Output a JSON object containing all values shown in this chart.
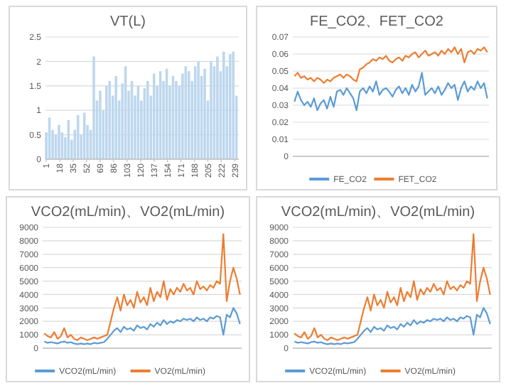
{
  "chart_data": [
    {
      "type": "bar",
      "title": "VT(L)",
      "x": [
        1,
        5,
        9,
        13,
        17,
        21,
        25,
        29,
        33,
        37,
        41,
        45,
        49,
        53,
        57,
        61,
        65,
        69,
        73,
        77,
        81,
        85,
        89,
        93,
        97,
        101,
        105,
        109,
        113,
        117,
        121,
        125,
        129,
        133,
        137,
        141,
        145,
        149,
        153,
        157,
        161,
        165,
        169,
        173,
        177,
        181,
        185,
        189,
        193,
        197,
        201,
        205,
        209,
        213,
        217,
        221,
        225,
        229,
        233,
        237,
        241
      ],
      "values": [
        0.55,
        0.85,
        0.6,
        0.5,
        0.7,
        0.55,
        0.45,
        0.8,
        0.4,
        0.6,
        0.9,
        0.5,
        0.95,
        0.7,
        0.6,
        2.1,
        1.2,
        1.4,
        1.0,
        1.5,
        1.6,
        1.3,
        1.7,
        1.2,
        1.55,
        1.9,
        1.4,
        1.6,
        1.3,
        1.5,
        1.2,
        1.45,
        1.6,
        1.3,
        1.75,
        1.5,
        1.8,
        1.6,
        1.85,
        1.5,
        1.7,
        1.6,
        1.5,
        1.75,
        1.9,
        1.8,
        1.6,
        1.9,
        2.0,
        1.7,
        1.85,
        1.2,
        2.0,
        1.9,
        2.1,
        1.8,
        2.2,
        1.9,
        2.15,
        2.2,
        1.3
      ],
      "color": "#bdd7ee",
      "xlim": [
        0,
        244
      ],
      "xticks": [
        1,
        18,
        35,
        52,
        69,
        86,
        103,
        120,
        137,
        154,
        171,
        188,
        205,
        222,
        239
      ],
      "ylim": [
        0,
        2.5
      ],
      "yticks": [
        0,
        0.5,
        1,
        1.5,
        2,
        2.5
      ],
      "grid": "y",
      "legend": false
    },
    {
      "type": "line",
      "title": "FE_CO2、FET_CO2",
      "categories": [
        null,
        null,
        null,
        null,
        null,
        null,
        null,
        null,
        null,
        null,
        null,
        null,
        null,
        null,
        null,
        null,
        null,
        null,
        null,
        null,
        null,
        null,
        null,
        null,
        null,
        null,
        null,
        null,
        null,
        null,
        null,
        null,
        null,
        null,
        null,
        null,
        null,
        null,
        null,
        null,
        null,
        null,
        null,
        null,
        null,
        null,
        null,
        null,
        null,
        null,
        null,
        null,
        null,
        null,
        null,
        null,
        null,
        null,
        null,
        null
      ],
      "series": [
        {
          "name": "FE_CO2",
          "color": "#5b9bd5",
          "values": [
            0.032,
            0.038,
            0.033,
            0.03,
            0.032,
            0.029,
            0.034,
            0.027,
            0.031,
            0.033,
            0.028,
            0.035,
            0.029,
            0.038,
            0.039,
            0.036,
            0.04,
            0.037,
            0.034,
            0.027,
            0.038,
            0.04,
            0.037,
            0.041,
            0.038,
            0.044,
            0.036,
            0.039,
            0.04,
            0.038,
            0.035,
            0.039,
            0.041,
            0.037,
            0.04,
            0.036,
            0.042,
            0.038,
            0.041,
            0.049,
            0.036,
            0.038,
            0.04,
            0.037,
            0.041,
            0.036,
            0.039,
            0.043,
            0.04,
            0.042,
            0.033,
            0.04,
            0.044,
            0.038,
            0.041,
            0.039,
            0.044,
            0.04,
            0.043,
            0.034
          ]
        },
        {
          "name": "FET_CO2",
          "color": "#ed7d31",
          "values": [
            0.047,
            0.049,
            0.046,
            0.047,
            0.045,
            0.046,
            0.044,
            0.046,
            0.045,
            0.043,
            0.045,
            0.044,
            0.046,
            0.047,
            0.048,
            0.046,
            0.048,
            0.047,
            0.045,
            0.044,
            0.051,
            0.052,
            0.054,
            0.055,
            0.057,
            0.056,
            0.058,
            0.057,
            0.059,
            0.056,
            0.055,
            0.057,
            0.058,
            0.056,
            0.059,
            0.058,
            0.06,
            0.061,
            0.058,
            0.06,
            0.062,
            0.059,
            0.06,
            0.061,
            0.059,
            0.062,
            0.06,
            0.063,
            0.061,
            0.064,
            0.06,
            0.063,
            0.055,
            0.061,
            0.062,
            0.06,
            0.063,
            0.062,
            0.064,
            0.061
          ]
        }
      ],
      "ylim": [
        0,
        0.07
      ],
      "yticks": [
        0,
        0.01,
        0.02,
        0.03,
        0.04,
        0.05,
        0.06,
        0.07
      ],
      "grid": "y",
      "legend": "bottom",
      "marker": "none",
      "tick_labels": "y"
    },
    {
      "type": "line",
      "title": "VCO2(mL/min)、VO2(mL/min)",
      "categories": [
        null,
        null,
        null,
        null,
        null,
        null,
        null,
        null,
        null,
        null,
        null,
        null,
        null,
        null,
        null,
        null,
        null,
        null,
        null,
        null,
        null,
        null,
        null,
        null,
        null,
        null,
        null,
        null,
        null,
        null,
        null,
        null,
        null,
        null,
        null,
        null,
        null,
        null,
        null,
        null,
        null,
        null,
        null,
        null,
        null,
        null,
        null,
        null,
        null,
        null,
        null,
        null,
        null,
        null,
        null,
        null,
        null,
        null,
        null,
        null
      ],
      "series": [
        {
          "name": "VCO2(mL/min)",
          "color": "#5b9bd5",
          "values": [
            500,
            400,
            450,
            400,
            350,
            450,
            500,
            400,
            450,
            350,
            300,
            350,
            300,
            350,
            300,
            400,
            350,
            400,
            450,
            700,
            1000,
            1300,
            1500,
            1200,
            1600,
            1400,
            1500,
            1300,
            1700,
            1500,
            1600,
            1400,
            1800,
            1600,
            1900,
            1700,
            2100,
            1800,
            2000,
            1900,
            2100,
            2000,
            2200,
            2100,
            2200,
            2000,
            2300,
            2100,
            2200,
            2000,
            2300,
            2200,
            2400,
            2300,
            1000,
            2500,
            2300,
            3000,
            2600,
            1800
          ]
        },
        {
          "name": "VO2(mL/min)",
          "color": "#ed7d31",
          "values": [
            1100,
            900,
            800,
            1200,
            700,
            900,
            1500,
            800,
            1000,
            700,
            600,
            800,
            700,
            600,
            700,
            800,
            700,
            800,
            900,
            1000,
            2000,
            3000,
            3800,
            2800,
            4000,
            3200,
            3600,
            3000,
            4200,
            3400,
            3800,
            3200,
            4500,
            3500,
            4200,
            3800,
            5000,
            3600,
            4400,
            4000,
            4500,
            4200,
            4800,
            4300,
            4500,
            4000,
            5000,
            4400,
            4600,
            4300,
            4700,
            4500,
            5000,
            4800,
            8500,
            3500,
            5000,
            6000,
            5200,
            4000
          ]
        }
      ],
      "ylim": [
        0,
        9000
      ],
      "yticks": [
        0,
        1000,
        2000,
        3000,
        4000,
        5000,
        6000,
        7000,
        8000,
        9000
      ],
      "grid": "y",
      "legend": "bottom",
      "marker": "none",
      "tick_labels": "y"
    },
    {
      "type": "line",
      "title": "VCO2(mL/min)、VO2(mL/min)",
      "categories": [
        null,
        null,
        null,
        null,
        null,
        null,
        null,
        null,
        null,
        null,
        null,
        null,
        null,
        null,
        null,
        null,
        null,
        null,
        null,
        null,
        null,
        null,
        null,
        null,
        null,
        null,
        null,
        null,
        null,
        null,
        null,
        null,
        null,
        null,
        null,
        null,
        null,
        null,
        null,
        null,
        null,
        null,
        null,
        null,
        null,
        null,
        null,
        null,
        null,
        null,
        null,
        null,
        null,
        null,
        null,
        null,
        null,
        null,
        null,
        null
      ],
      "series": [
        {
          "name": "VCO2(mL/min)",
          "color": "#5b9bd5",
          "values": [
            500,
            400,
            450,
            400,
            350,
            450,
            500,
            400,
            450,
            350,
            300,
            350,
            300,
            350,
            300,
            400,
            350,
            400,
            450,
            700,
            1000,
            1300,
            1500,
            1200,
            1600,
            1400,
            1500,
            1300,
            1700,
            1500,
            1600,
            1400,
            1800,
            1600,
            1900,
            1700,
            2100,
            1800,
            2000,
            1900,
            2100,
            2000,
            2200,
            2100,
            2200,
            2000,
            2300,
            2100,
            2200,
            2000,
            2300,
            2200,
            2400,
            2300,
            1000,
            2500,
            2300,
            3000,
            2600,
            1800
          ]
        },
        {
          "name": "VO2(mL/min)",
          "color": "#ed7d31",
          "values": [
            1100,
            900,
            800,
            1200,
            700,
            900,
            1500,
            800,
            1000,
            700,
            600,
            800,
            700,
            600,
            700,
            800,
            700,
            800,
            900,
            1000,
            2000,
            3000,
            3800,
            2800,
            4000,
            3200,
            3600,
            3000,
            4200,
            3400,
            3800,
            3200,
            4500,
            3500,
            4200,
            3800,
            5000,
            3600,
            4400,
            4000,
            4500,
            4200,
            4800,
            4300,
            4500,
            4000,
            5000,
            4400,
            4600,
            4300,
            4700,
            4500,
            5000,
            4800,
            8500,
            3500,
            5000,
            6000,
            5200,
            4000
          ]
        }
      ],
      "ylim": [
        0,
        9000
      ],
      "yticks": [
        0,
        1000,
        2000,
        3000,
        4000,
        5000,
        6000,
        7000,
        8000,
        9000
      ],
      "grid": "y",
      "legend": "bottom",
      "marker": "none",
      "tick_labels": "y"
    }
  ]
}
